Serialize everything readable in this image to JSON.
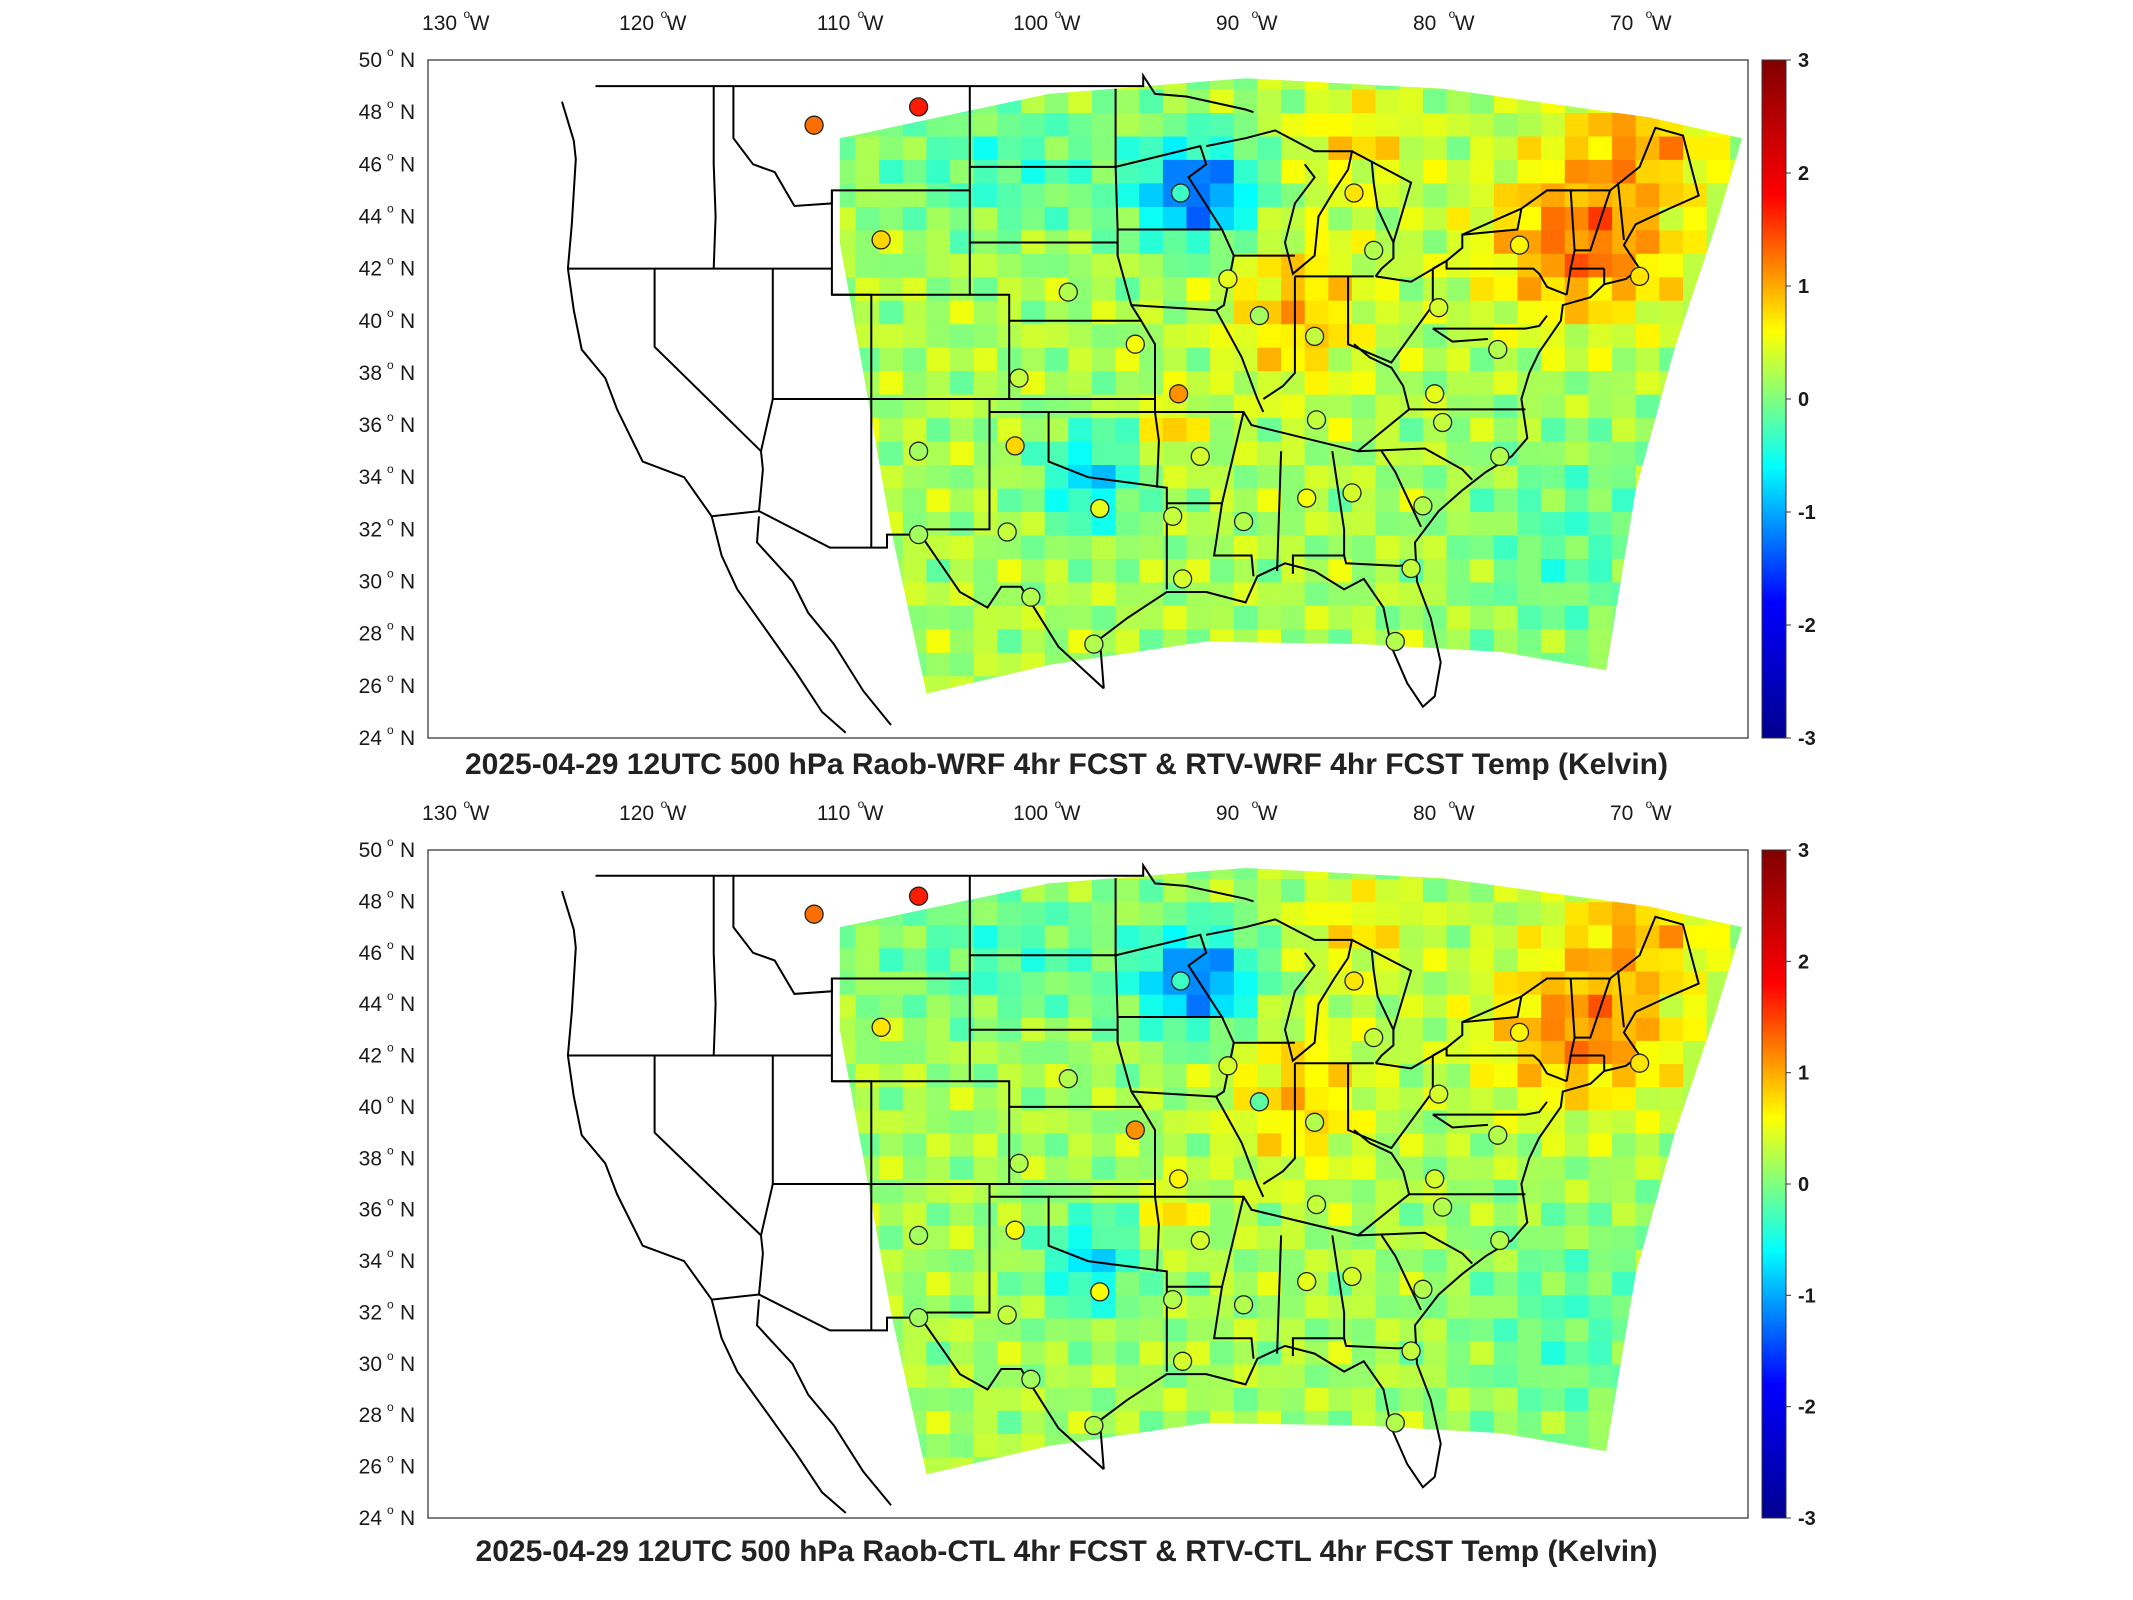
{
  "colors": {
    "colormap": [
      "#00008f",
      "#0000ff",
      "#00ffff",
      "#ffff00",
      "#ff0000",
      "#800000"
    ],
    "station_marker_edge": "#222222",
    "state_border": "#000000"
  },
  "panels": [
    {
      "title": "2025-04-29 12UTC 500 hPa Raob-WRF 4hr FCST & RTV-WRF 4hr FCST Temp (Kelvin)",
      "lon_labels": [
        "130",
        "120",
        "110",
        "100",
        "90",
        "80",
        "70"
      ],
      "lon_suffix": "W",
      "lat_labels": [
        "50",
        "48",
        "46",
        "44",
        "42",
        "40",
        "38",
        "36",
        "34",
        "32",
        "30",
        "28",
        "26",
        "24"
      ],
      "lat_suffix": "N",
      "colorbar_ticks": [
        "3",
        "2",
        "1",
        "0",
        "-1",
        "-2",
        "-3"
      ],
      "colorbar_range": [
        -3,
        3
      ],
      "stations": [
        {
          "lon": -111.9,
          "lat": 47.5,
          "value": 1.6
        },
        {
          "lon": -106.6,
          "lat": 48.2,
          "value": 2.1
        },
        {
          "lon": -108.5,
          "lat": 43.1,
          "value": 1.0
        },
        {
          "lon": -93.3,
          "lat": 44.9,
          "value": -0.4
        },
        {
          "lon": -84.5,
          "lat": 44.9,
          "value": 0.9
        },
        {
          "lon": -83.5,
          "lat": 42.7,
          "value": 0.3
        },
        {
          "lon": -76.1,
          "lat": 42.9,
          "value": 0.8
        },
        {
          "lon": -90.9,
          "lat": 41.6,
          "value": 0.6
        },
        {
          "lon": -89.3,
          "lat": 40.2,
          "value": 0.2
        },
        {
          "lon": -99.0,
          "lat": 41.1,
          "value": 0.3
        },
        {
          "lon": -80.2,
          "lat": 40.5,
          "value": 0.5
        },
        {
          "lon": -86.5,
          "lat": 39.4,
          "value": 0.4
        },
        {
          "lon": -95.6,
          "lat": 39.1,
          "value": 0.7
        },
        {
          "lon": -101.5,
          "lat": 37.8,
          "value": 0.4
        },
        {
          "lon": -93.4,
          "lat": 37.2,
          "value": 1.4
        },
        {
          "lon": -77.2,
          "lat": 38.9,
          "value": 0.3
        },
        {
          "lon": -80.4,
          "lat": 37.2,
          "value": 0.6
        },
        {
          "lon": -86.4,
          "lat": 36.2,
          "value": 0.4
        },
        {
          "lon": -80.0,
          "lat": 36.1,
          "value": 0.4
        },
        {
          "lon": -106.6,
          "lat": 35.0,
          "value": 0.2
        },
        {
          "lon": -101.7,
          "lat": 35.2,
          "value": 1.0
        },
        {
          "lon": -92.3,
          "lat": 34.8,
          "value": 0.5
        },
        {
          "lon": -77.1,
          "lat": 34.8,
          "value": 0.3
        },
        {
          "lon": -97.4,
          "lat": 32.8,
          "value": 0.6
        },
        {
          "lon": -93.7,
          "lat": 32.5,
          "value": 0.4
        },
        {
          "lon": -90.1,
          "lat": 32.3,
          "value": 0.3
        },
        {
          "lon": -86.9,
          "lat": 33.2,
          "value": 0.7
        },
        {
          "lon": -84.6,
          "lat": 33.4,
          "value": 0.5
        },
        {
          "lon": -81.0,
          "lat": 32.9,
          "value": 0.3
        },
        {
          "lon": -106.6,
          "lat": 31.8,
          "value": 0.2
        },
        {
          "lon": -102.1,
          "lat": 31.9,
          "value": 0.4
        },
        {
          "lon": -100.9,
          "lat": 29.4,
          "value": 0.3
        },
        {
          "lon": -93.2,
          "lat": 30.1,
          "value": 0.5
        },
        {
          "lon": -97.7,
          "lat": 27.6,
          "value": 0.3
        },
        {
          "lon": -82.4,
          "lat": 27.7,
          "value": 0.3
        },
        {
          "lon": -81.6,
          "lat": 30.5,
          "value": 0.4
        },
        {
          "lon": -70.0,
          "lat": 41.7,
          "value": 0.9
        }
      ]
    },
    {
      "title": "2025-04-29 12UTC 500 hPa Raob-CTL 4hr FCST & RTV-CTL 4hr FCST Temp (Kelvin)",
      "lon_labels": [
        "130",
        "120",
        "110",
        "100",
        "90",
        "80",
        "70"
      ],
      "lon_suffix": "W",
      "lat_labels": [
        "50",
        "48",
        "46",
        "44",
        "42",
        "40",
        "38",
        "36",
        "34",
        "32",
        "30",
        "28",
        "26",
        "24"
      ],
      "lat_suffix": "N",
      "colorbar_ticks": [
        "3",
        "2",
        "1",
        "0",
        "-1",
        "-2",
        "-3"
      ],
      "colorbar_range": [
        -3,
        3
      ],
      "stations": [
        {
          "lon": -111.9,
          "lat": 47.5,
          "value": 1.6
        },
        {
          "lon": -106.6,
          "lat": 48.2,
          "value": 2.1
        },
        {
          "lon": -108.5,
          "lat": 43.1,
          "value": 0.9
        },
        {
          "lon": -93.3,
          "lat": 44.9,
          "value": -0.4
        },
        {
          "lon": -84.5,
          "lat": 44.9,
          "value": 0.9
        },
        {
          "lon": -83.5,
          "lat": 42.7,
          "value": 0.4
        },
        {
          "lon": -76.1,
          "lat": 42.9,
          "value": 0.8
        },
        {
          "lon": -90.9,
          "lat": 41.6,
          "value": 0.5
        },
        {
          "lon": -89.3,
          "lat": 40.2,
          "value": -0.2
        },
        {
          "lon": -99.0,
          "lat": 41.1,
          "value": 0.3
        },
        {
          "lon": -80.2,
          "lat": 40.5,
          "value": 0.5
        },
        {
          "lon": -86.5,
          "lat": 39.4,
          "value": 0.3
        },
        {
          "lon": -95.6,
          "lat": 39.1,
          "value": 1.4
        },
        {
          "lon": -101.5,
          "lat": 37.8,
          "value": 0.3
        },
        {
          "lon": -93.4,
          "lat": 37.2,
          "value": 0.8
        },
        {
          "lon": -77.2,
          "lat": 38.9,
          "value": 0.3
        },
        {
          "lon": -80.4,
          "lat": 37.2,
          "value": 0.5
        },
        {
          "lon": -86.4,
          "lat": 36.2,
          "value": 0.4
        },
        {
          "lon": -80.0,
          "lat": 36.1,
          "value": 0.3
        },
        {
          "lon": -106.6,
          "lat": 35.0,
          "value": 0.2
        },
        {
          "lon": -101.7,
          "lat": 35.2,
          "value": 0.7
        },
        {
          "lon": -92.3,
          "lat": 34.8,
          "value": 0.5
        },
        {
          "lon": -77.1,
          "lat": 34.8,
          "value": 0.3
        },
        {
          "lon": -97.4,
          "lat": 32.8,
          "value": 0.7
        },
        {
          "lon": -93.7,
          "lat": 32.5,
          "value": 0.3
        },
        {
          "lon": -90.1,
          "lat": 32.3,
          "value": 0.3
        },
        {
          "lon": -86.9,
          "lat": 33.2,
          "value": 0.6
        },
        {
          "lon": -84.6,
          "lat": 33.4,
          "value": 0.5
        },
        {
          "lon": -81.0,
          "lat": 32.9,
          "value": 0.3
        },
        {
          "lon": -106.6,
          "lat": 31.8,
          "value": 0.2
        },
        {
          "lon": -102.1,
          "lat": 31.9,
          "value": 0.4
        },
        {
          "lon": -100.9,
          "lat": 29.4,
          "value": 0.2
        },
        {
          "lon": -93.2,
          "lat": 30.1,
          "value": 0.5
        },
        {
          "lon": -97.7,
          "lat": 27.6,
          "value": 0.3
        },
        {
          "lon": -82.4,
          "lat": 27.7,
          "value": 0.3
        },
        {
          "lon": -81.6,
          "lat": 30.5,
          "value": 0.4
        },
        {
          "lon": -70.0,
          "lat": 41.7,
          "value": 0.9
        }
      ]
    }
  ]
}
